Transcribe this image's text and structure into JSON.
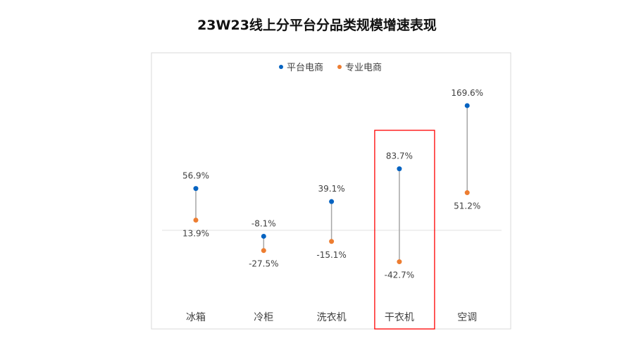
{
  "chart_data": {
    "type": "dot-range",
    "title": "23W23线上分平台分品类规模增速表现",
    "categories": [
      "冰箱",
      "冷柜",
      "洗衣机",
      "干衣机",
      "空调"
    ],
    "series": [
      {
        "name": "平台电商",
        "color": "#0563C1",
        "values": [
          56.9,
          -8.1,
          39.1,
          83.7,
          169.6
        ],
        "labels": [
          "56.9%",
          "-8.1%",
          "39.1%",
          "83.7%",
          "169.6%"
        ]
      },
      {
        "name": "专业电商",
        "color": "#ED7D31",
        "values": [
          13.9,
          -27.5,
          -15.1,
          -42.7,
          51.2
        ],
        "labels": [
          "13.9%",
          "-27.5%",
          "-15.1%",
          "-42.7%",
          "51.2%"
        ]
      }
    ],
    "legend": "top-center",
    "highlighted_category": "干衣机",
    "highlight_color": "#FF0000",
    "grid": false
  }
}
